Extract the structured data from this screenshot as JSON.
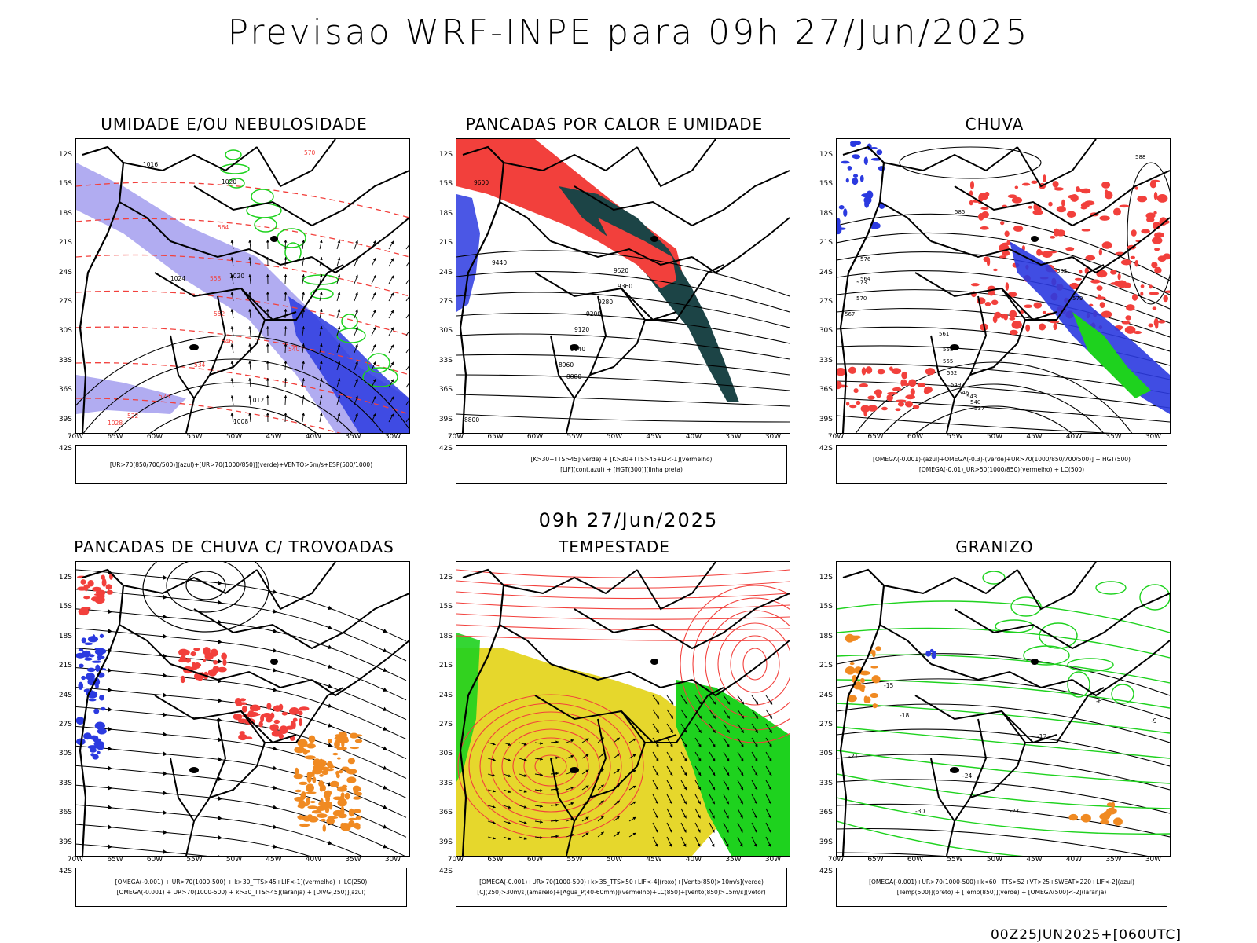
{
  "title": "Previsao WRF-INPE  para 09h 27/Jun/2025",
  "middle_title": "09h 27/Jun/2025",
  "run_label": "00Z25JUN2025+[060UTC]",
  "lat_ticks": [
    "12S",
    "15S",
    "18S",
    "21S",
    "24S",
    "27S",
    "30S",
    "33S",
    "36S",
    "39S",
    "42S"
  ],
  "lon_ticks": [
    "70W",
    "65W",
    "60W",
    "55W",
    "50W",
    "45W",
    "40W",
    "35W",
    "30W"
  ],
  "colors": {
    "blue": "#2b3ae0",
    "lavender": "#a9a3f0",
    "green": "#1ed21e",
    "red": "#f2403c",
    "darkteal": "#1c4446",
    "yellow": "#e6d72c",
    "orange": "#f08a22",
    "black": "#000000"
  },
  "panels": [
    {
      "id": "p1",
      "title": "UMIDADE E/OU NEBULOSIDADE",
      "legend": [
        "[UR>70(850/700/500)](azul)+[UR>70(1000/850)](verde)+VENTO>5m/s+ESP(500/1000)"
      ],
      "labels": [
        "1016",
        "1020",
        "1024",
        "1020",
        "1012",
        "1008",
        "1028",
        "570",
        "564",
        "558",
        "552",
        "546",
        "540",
        "534",
        "528",
        "522"
      ]
    },
    {
      "id": "p2",
      "title": "PANCADAS POR CALOR E UMIDADE",
      "legend": [
        "[K>30+TTS>45](verde)  +  [K>30+TTS>45+LI<-1](vermelho)",
        "[LIF](cont.azul)  +  [HGT(300)](linha preta)"
      ],
      "labels": [
        "9600",
        "9520",
        "9440",
        "9360",
        "9280",
        "9200",
        "9120",
        "9040",
        "8960",
        "8880",
        "8800"
      ]
    },
    {
      "id": "p3",
      "title": "CHUVA",
      "legend": [
        "[OMEGA(-0.001)-(azul)+OMEGA(-0.3)-(verde)+UR>70(1000/850/700/500)]  +  HGT(500)",
        "[OMEGA(-0.01)_UR>50(1000/850)(vermelho)  +  LC(500)"
      ],
      "labels": [
        "588",
        "585",
        "582",
        "579",
        "576",
        "573",
        "570",
        "567",
        "564",
        "561",
        "558",
        "555",
        "552",
        "549",
        "546",
        "543",
        "540",
        "537"
      ]
    },
    {
      "id": "p4",
      "title": "PANCADAS DE CHUVA C/ TROVOADAS",
      "legend": [
        "[OMEGA(-0.001)  +  UR>70(1000-500)  +  k>30_TTS>45+LIF<-1](vermelho)  +  LC(250)",
        "[OMEGA(-0.001)  +  UR>70(1000-500)  +  k>30_TTS>45](laranja)  +  [DIVG(250)](azul)"
      ],
      "labels": []
    },
    {
      "id": "p5",
      "title": "TEMPESTADE",
      "legend": [
        "[OMEGA(-0.001)+UR>70(1000-500)+k>35_TTS>50+LIF<-4](roxo)+[Vento(850)>10m/s](verde)",
        "[CJ(250)>30m/s](amarelo)+[Agua_P(40-60mm)](vermelho)+LC(850)+[Vento(850)>15m/s](vetor)"
      ],
      "labels": []
    },
    {
      "id": "p6",
      "title": "GRANIZO",
      "legend": [
        "[OMEGA(-0.001)+UR>70(1000-500)+k<60+TTS>52+VT>25+SWEAT>220+LIF<-2](azul)",
        "[Temp(500)](preto)  +  [Temp(850)](verde)  +  [OMEGA(500)<-2](laranja)"
      ],
      "labels": [
        "-6",
        "-9",
        "-12",
        "-15",
        "-18",
        "-21",
        "-24",
        "-27",
        "-30"
      ]
    }
  ]
}
